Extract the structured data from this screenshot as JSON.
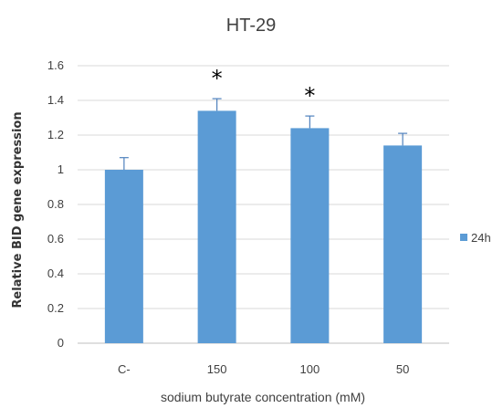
{
  "chart_data": {
    "type": "bar",
    "title": "HT-29",
    "xlabel": "sodium butyrate concentration (mM)",
    "ylabel": "Relative BID gene expression",
    "categories": [
      "C-",
      "150",
      "100",
      "50"
    ],
    "series": [
      {
        "name": "24h",
        "values": [
          1.0,
          1.34,
          1.24,
          1.14
        ],
        "errors": [
          0.07,
          0.07,
          0.07,
          0.07
        ],
        "color": "#5b9bd5"
      }
    ],
    "significance": [
      "",
      "*",
      "*",
      ""
    ],
    "ylim": [
      0,
      1.6
    ],
    "yticks": [
      "0",
      "0.2",
      "0.4",
      "0.6",
      "0.8",
      "1",
      "1.2",
      "1.4",
      "1.6"
    ],
    "grid": true,
    "legend_position": "right"
  }
}
